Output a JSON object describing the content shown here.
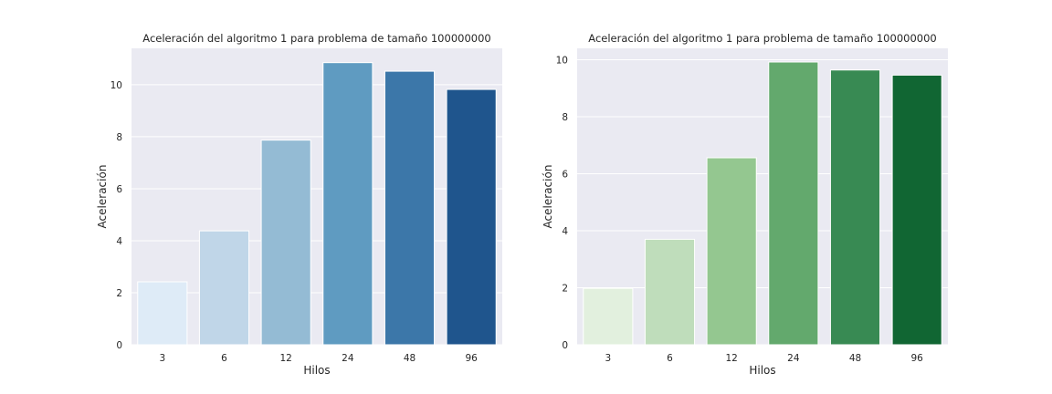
{
  "chart_data": [
    {
      "type": "bar",
      "title": "Aceleración del algoritmo 1 para problema de tamaño 100000000",
      "xlabel": "Hilos",
      "ylabel": "Aceleración",
      "categories": [
        "3",
        "6",
        "12",
        "24",
        "48",
        "96"
      ],
      "values": [
        2.42,
        4.38,
        7.87,
        10.85,
        10.52,
        9.82
      ],
      "ylim": [
        0,
        11.4
      ],
      "yticks": [
        "0",
        "2",
        "4",
        "6",
        "8",
        "10"
      ],
      "grid": true,
      "colors": [
        "#deebf7",
        "#c0d6e8",
        "#94bbd4",
        "#5f9bc1",
        "#3c77a9",
        "#1f558d"
      ]
    },
    {
      "type": "bar",
      "title": "Aceleración del algoritmo 1 para problema de tamaño 100000000",
      "xlabel": "Hilos",
      "ylabel": "Aceleración",
      "categories": [
        "3",
        "6",
        "12",
        "24",
        "48",
        "96"
      ],
      "values": [
        1.98,
        3.7,
        6.56,
        9.92,
        9.64,
        9.46
      ],
      "ylim": [
        0,
        10.4
      ],
      "yticks": [
        "0",
        "2",
        "4",
        "6",
        "8",
        "10"
      ],
      "grid": true,
      "colors": [
        "#e2f0de",
        "#bfddbb",
        "#94c790",
        "#63a96d",
        "#388a53",
        "#116633"
      ]
    }
  ]
}
